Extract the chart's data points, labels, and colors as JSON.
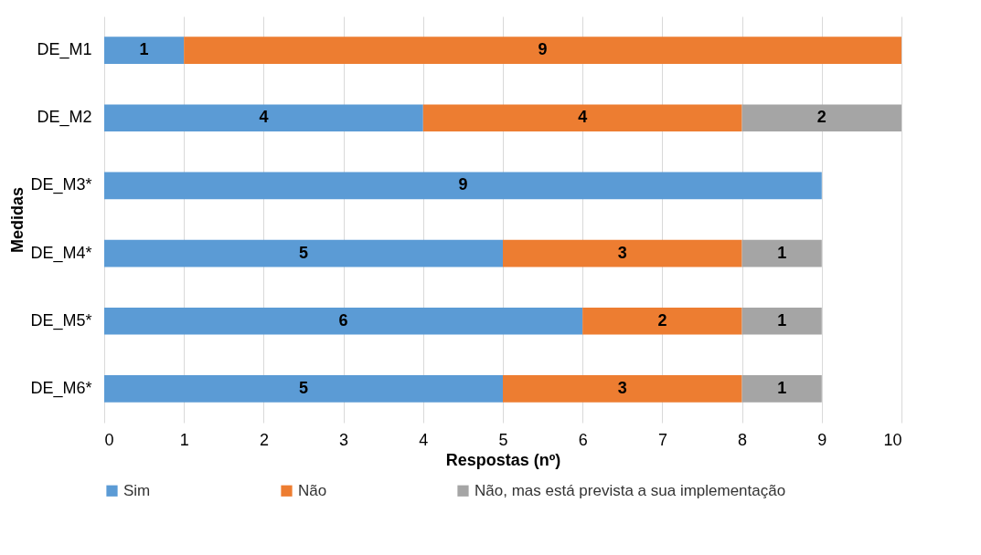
{
  "chart_data": {
    "type": "bar",
    "orientation": "horizontal",
    "stacked": true,
    "xlabel": "Respostas (nº)",
    "ylabel": "Medidas",
    "categories": [
      "DE_M1",
      "DE_M2",
      "DE_M3*",
      "DE_M4*",
      "DE_M5*",
      "DE_M6*"
    ],
    "series": [
      {
        "name": "Sim",
        "color": "#5b9bd5",
        "values": [
          1,
          4,
          9,
          5,
          6,
          5
        ]
      },
      {
        "name": "Não",
        "color": "#ed7d31",
        "values": [
          9,
          4,
          null,
          3,
          2,
          3
        ]
      },
      {
        "name": "Não, mas está prevista a sua implementação",
        "color": "#a5a5a5",
        "values": [
          null,
          2,
          null,
          1,
          1,
          1
        ]
      }
    ],
    "xlim": [
      0,
      10
    ],
    "xticks": [
      0,
      1,
      2,
      3,
      4,
      5,
      6,
      7,
      8,
      9,
      10
    ],
    "grid": "x",
    "legend": "bottom",
    "data_labels": true
  }
}
